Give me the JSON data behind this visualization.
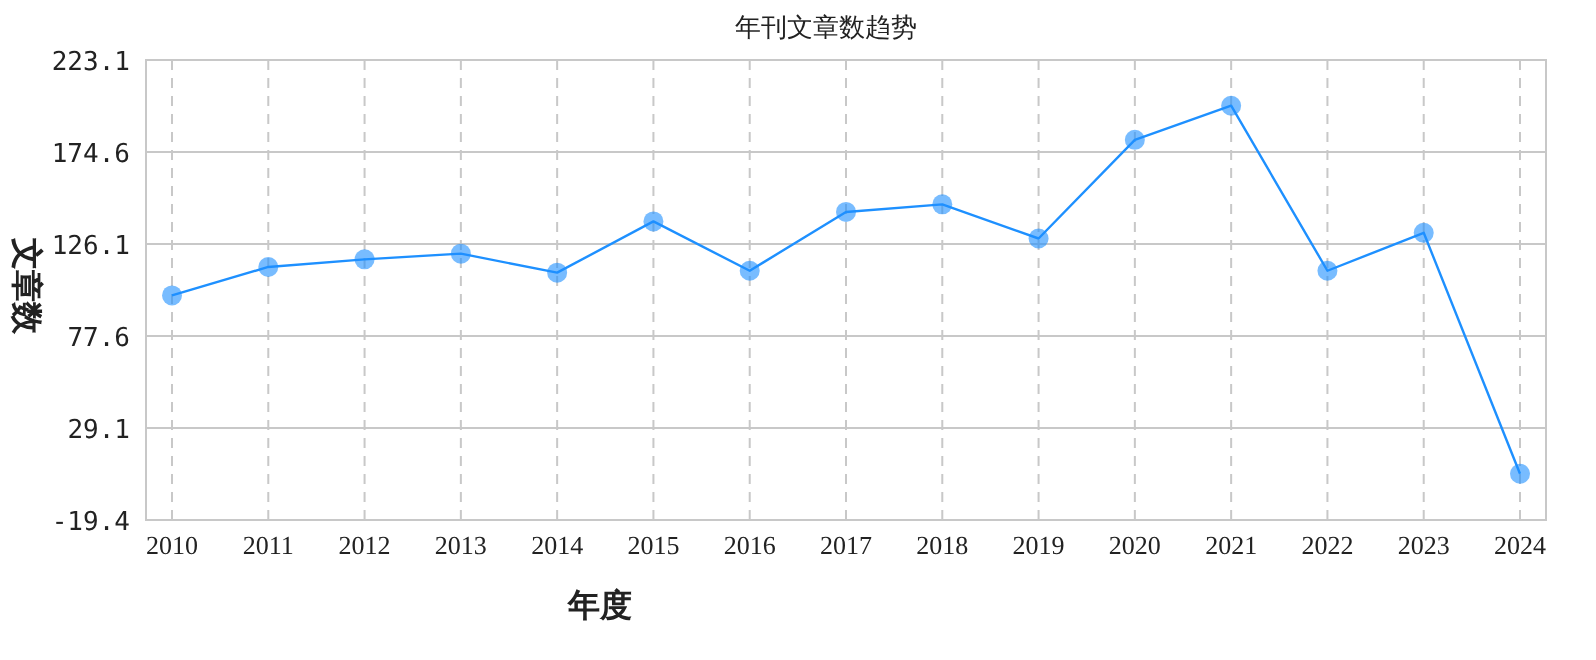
{
  "chart_data": {
    "type": "line",
    "title": "年刊文章数趋势",
    "xlabel": "年度",
    "ylabel": "文章数",
    "categories": [
      "2010",
      "2011",
      "2012",
      "2013",
      "2014",
      "2015",
      "2016",
      "2017",
      "2018",
      "2019",
      "2020",
      "2021",
      "2022",
      "2023",
      "2024"
    ],
    "series": [
      {
        "color": "#1e90ff",
        "values": [
          99,
          114,
          118,
          121,
          111,
          138,
          112,
          143,
          147,
          129,
          181,
          199,
          112,
          132,
          5
        ]
      }
    ],
    "ylim": [
      -19.4,
      223.1
    ],
    "yticks": [
      -19.4,
      29.1,
      77.6,
      126.1,
      174.6,
      223.1
    ],
    "grid": true,
    "marker": "circle",
    "line_style": "solid"
  }
}
